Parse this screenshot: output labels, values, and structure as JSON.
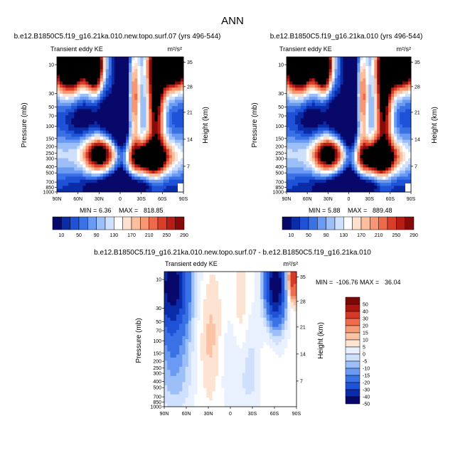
{
  "page": {
    "title": "ANN"
  },
  "palettes": {
    "abs": [
      "#08086b",
      "#0b2ca8",
      "#1f52d6",
      "#3a72e6",
      "#6b9af2",
      "#9dbff8",
      "#cfe0fc",
      "#ffffff",
      "#fde0cd",
      "#fbbf9e",
      "#f79672",
      "#ef6a4a",
      "#db3e28",
      "#b71d14",
      "#870a0a"
    ],
    "diff": [
      "#08086b",
      "#0b2ca8",
      "#1f52d6",
      "#3a72e6",
      "#6b9af2",
      "#9dbff8",
      "#cfe0fc",
      "#e8f1fd",
      "#ffffff",
      "#fde3d2",
      "#fbc3a5",
      "#f79c78",
      "#ef6d4d",
      "#d63a26",
      "#aa1610",
      "#7a0808"
    ]
  },
  "chart_data": [
    {
      "type": "heatmap",
      "id": "panel-left",
      "title": "b.e12.B1850C5.f19_g16.21ka.010.new.topo.surf.07 (yrs 496-544)",
      "subtitle": "Transient eddy KE",
      "units": "m²/s²",
      "ylabel": "Pressure (mb)",
      "y2label": "Height (km)",
      "x_ticks": [
        "90N",
        "60N",
        "30N",
        "0",
        "30S",
        "60S",
        "90S"
      ],
      "y_ticks": [
        "10",
        "30",
        "50",
        "70",
        "100",
        "150",
        "200",
        "250",
        "300",
        "400",
        "500",
        "700",
        "850",
        "1000"
      ],
      "y2_ticks": [
        "35",
        "28",
        "21",
        "14",
        "7"
      ],
      "min_label": "MIN =",
      "min_value": "6.36",
      "max_label": "MAX =",
      "max_value": "818.85",
      "colorbar": [
        "10",
        "50",
        "90",
        "130",
        "170",
        "210",
        "250",
        "290"
      ],
      "palette": "abs",
      "levels": [
        10,
        30,
        50,
        70,
        90,
        110,
        130,
        150,
        170,
        190,
        210,
        230,
        250,
        270,
        290
      ],
      "field": "abs"
    },
    {
      "type": "heatmap",
      "id": "panel-right",
      "title": "b.e12.B1850C5.f19_g16.21ka.010 (yrs 496-544)",
      "subtitle": "Transient eddy KE",
      "units": "m²/s²",
      "ylabel": "Pressure (mb)",
      "y2label": "Height (km)",
      "x_ticks": [
        "90N",
        "60N",
        "30N",
        "0",
        "30S",
        "60S",
        "90S"
      ],
      "y_ticks": [
        "10",
        "30",
        "50",
        "70",
        "100",
        "150",
        "200",
        "250",
        "300",
        "400",
        "500",
        "700",
        "850",
        "1000"
      ],
      "y2_ticks": [
        "35",
        "28",
        "21",
        "14",
        "7"
      ],
      "min_label": "MIN =",
      "min_value": "5.88",
      "max_label": "MAX =",
      "max_value": "889.48",
      "colorbar": [
        "10",
        "50",
        "90",
        "130",
        "170",
        "210",
        "250",
        "290"
      ],
      "palette": "abs",
      "levels": [
        10,
        30,
        50,
        70,
        90,
        110,
        130,
        150,
        170,
        190,
        210,
        230,
        250,
        270,
        290
      ],
      "field": "abs"
    },
    {
      "type": "heatmap",
      "id": "panel-diff",
      "title": "b.e12.B1850C5.f19_g16.21ka.010.new.topo.surf.07 - b.e12.B1850C5.f19_g16.21ka.010",
      "subtitle": "Transient eddy KE",
      "units": "m²/s²",
      "ylabel": "Pressure (mb)",
      "y2label": "Height (km)",
      "x_ticks": [
        "90N",
        "60N",
        "30N",
        "0",
        "30S",
        "60S",
        "90S"
      ],
      "y_ticks": [
        "10",
        "30",
        "50",
        "70",
        "100",
        "150",
        "200",
        "250",
        "300",
        "400",
        "500",
        "700",
        "850",
        "1000"
      ],
      "y2_ticks": [
        "35",
        "28",
        "21",
        "14",
        "7"
      ],
      "min_label": "MIN =",
      "min_value": "-106.76",
      "max_label": "MAX =",
      "max_value": "36.04",
      "colorbar": [
        "50",
        "40",
        "30",
        "20",
        "15",
        "10",
        "5",
        "0",
        "-5",
        "-10",
        "-15",
        "-20",
        "-30",
        "-40",
        "-50"
      ],
      "palette": "diff",
      "levels": [
        -50,
        -40,
        -30,
        -20,
        -15,
        -10,
        -5,
        0,
        5,
        10,
        15,
        20,
        30,
        40,
        50
      ],
      "field": "diff"
    }
  ]
}
